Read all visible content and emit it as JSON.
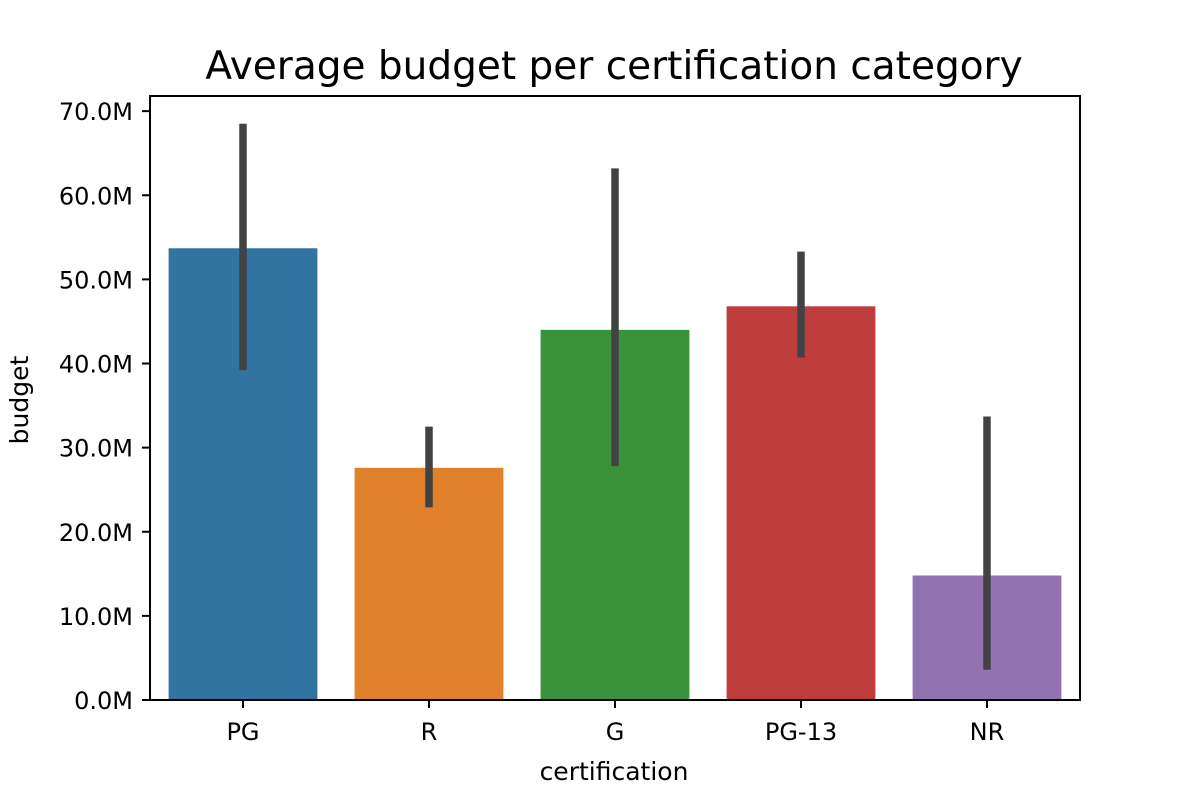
{
  "chart_data": {
    "type": "bar",
    "title": "Average budget per certification category",
    "xlabel": "certification",
    "ylabel": "budget",
    "categories": [
      "PG",
      "R",
      "G",
      "PG-13",
      "NR"
    ],
    "values": [
      53.7,
      27.6,
      44.0,
      46.8,
      14.8
    ],
    "error_low": [
      39.2,
      22.9,
      27.8,
      40.7,
      3.6
    ],
    "error_high": [
      68.5,
      32.5,
      63.2,
      53.3,
      33.7
    ],
    "colors": [
      "#3274a1",
      "#e1812c",
      "#3a923a",
      "#c03d3e",
      "#9372b2"
    ],
    "error_color": "#424242",
    "unit": "M",
    "ylim": [
      0,
      71.8
    ],
    "yticks": [
      0,
      10,
      20,
      30,
      40,
      50,
      60,
      70
    ],
    "ytick_labels": [
      "0.0M",
      "10.0M",
      "20.0M",
      "30.0M",
      "40.0M",
      "50.0M",
      "60.0M",
      "70.0M"
    ],
    "grid": false,
    "legend": "none"
  }
}
